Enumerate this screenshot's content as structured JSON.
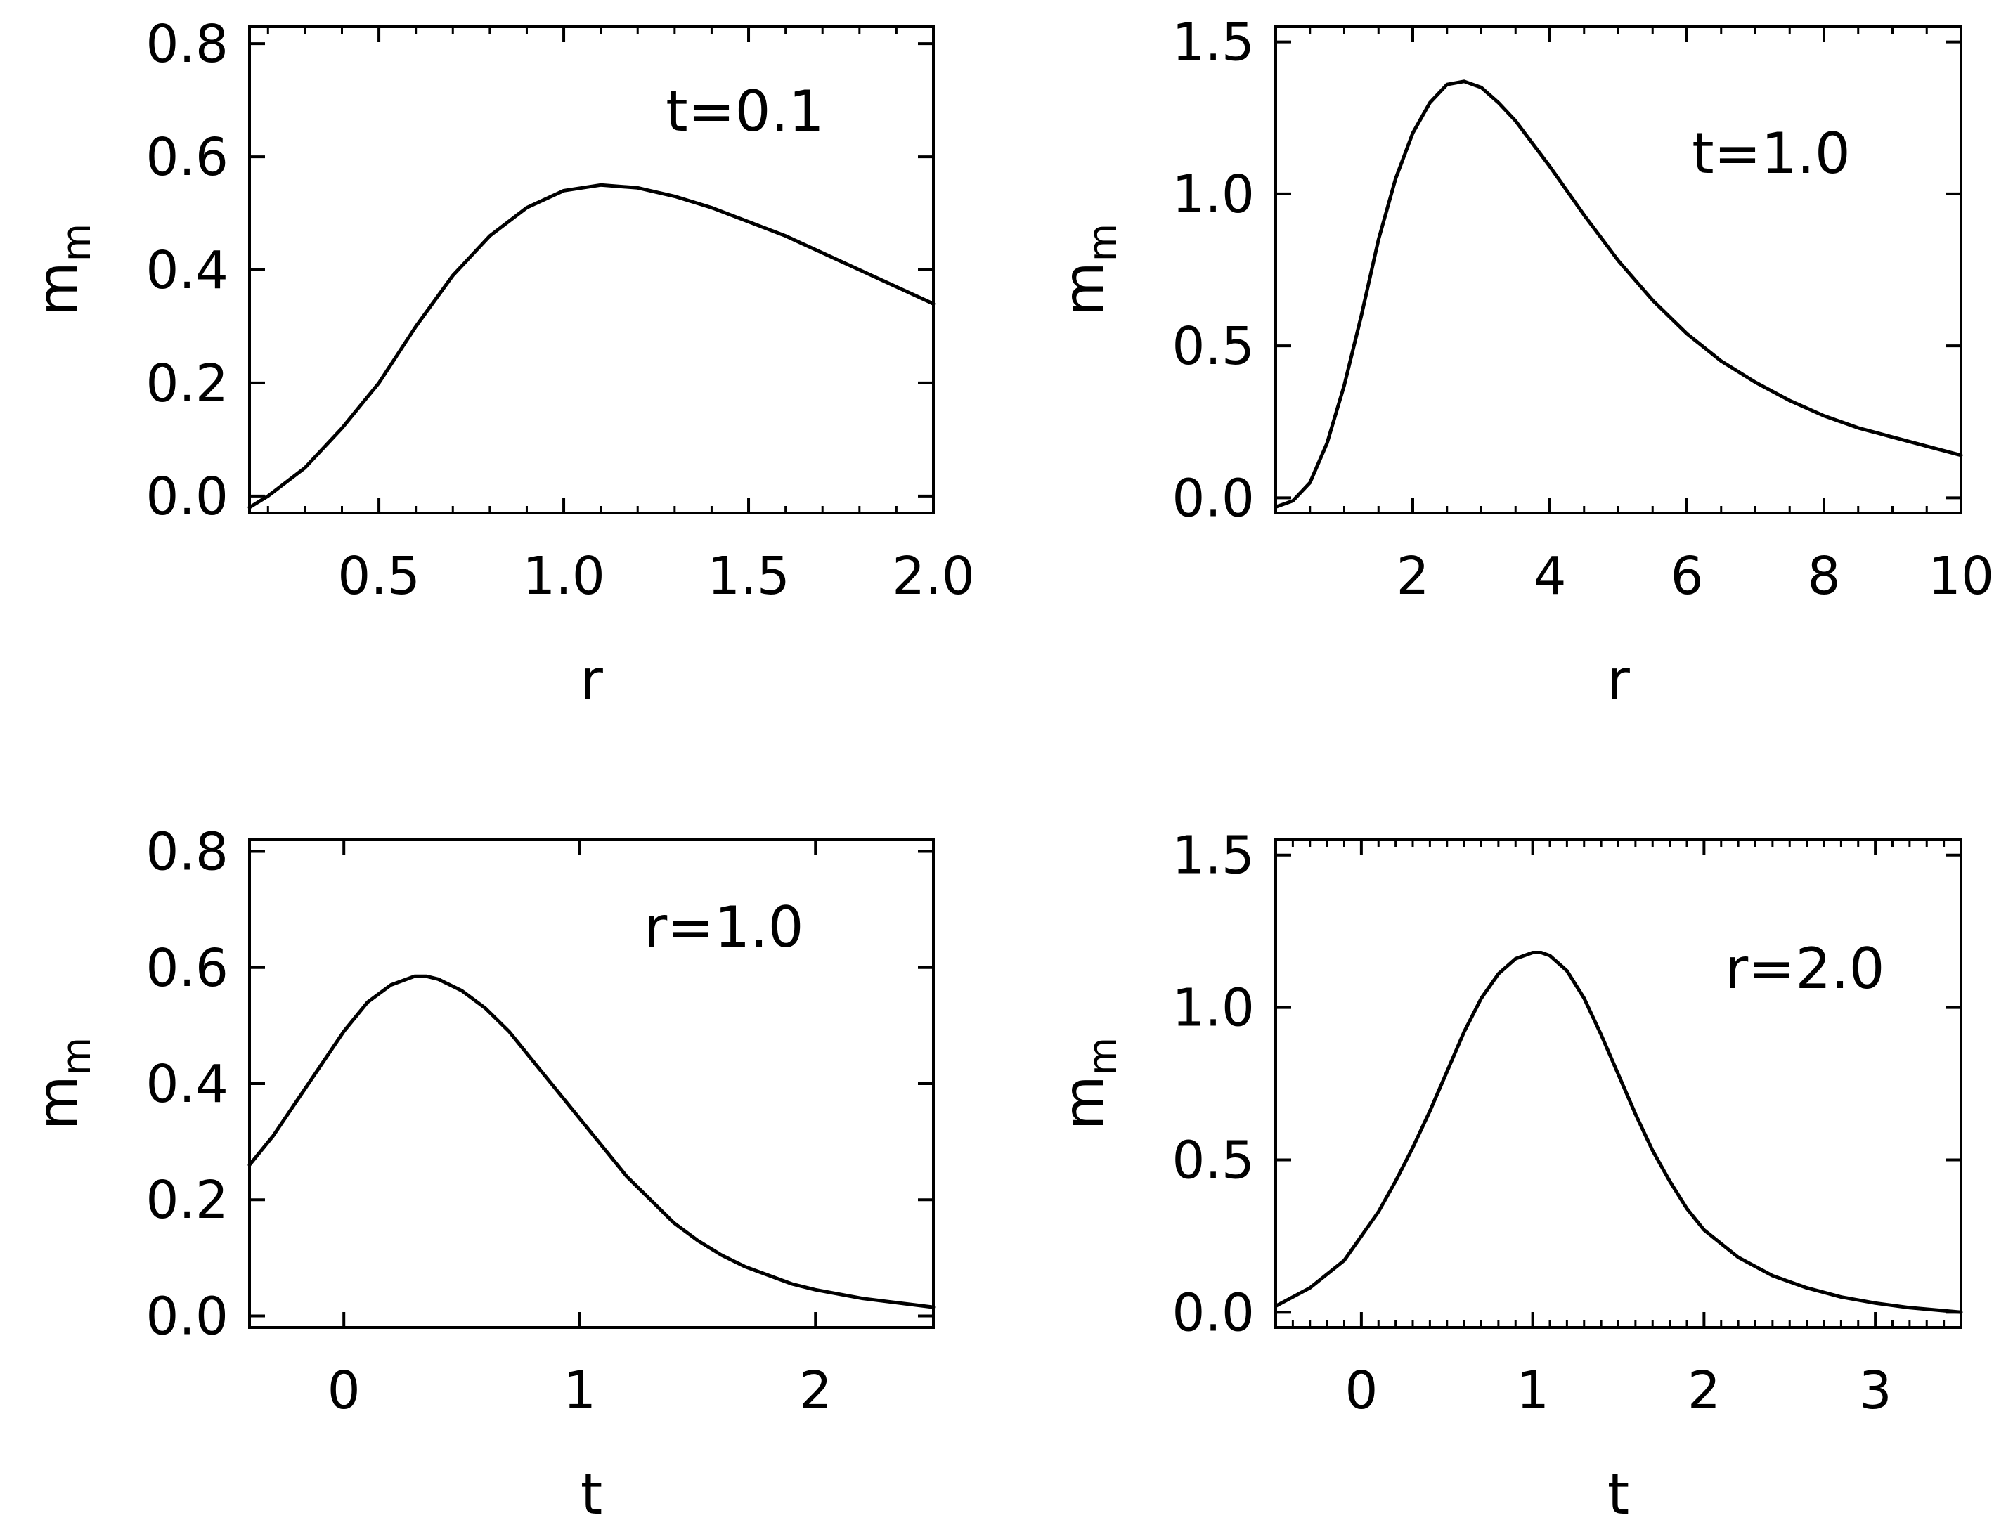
{
  "chart_data": [
    {
      "type": "line",
      "annotation": "t=0.1",
      "xlabel": "r",
      "ylabel": "m_m",
      "xlim": [
        0.15,
        2.0
      ],
      "ylim": [
        -0.03,
        0.83
      ],
      "xticks": [
        0.5,
        1.0,
        1.5,
        2.0
      ],
      "xtick_labels": [
        "0.5",
        "1.0",
        "1.5",
        "2.0"
      ],
      "yticks": [
        0.0,
        0.2,
        0.4,
        0.6,
        0.8
      ],
      "ytick_labels": [
        "0.0",
        "0.2",
        "0.4",
        "0.6",
        "0.8"
      ],
      "x_minor_step": 0.1,
      "series": [
        {
          "x": [
            0.15,
            0.2,
            0.3,
            0.4,
            0.5,
            0.6,
            0.7,
            0.8,
            0.9,
            1.0,
            1.1,
            1.2,
            1.3,
            1.4,
            1.5,
            1.6,
            1.7,
            1.8,
            1.9,
            2.0
          ],
          "y": [
            -0.02,
            0.0,
            0.05,
            0.12,
            0.2,
            0.3,
            0.39,
            0.46,
            0.51,
            0.54,
            0.55,
            0.545,
            0.53,
            0.51,
            0.485,
            0.46,
            0.43,
            0.4,
            0.37,
            0.34
          ]
        }
      ]
    },
    {
      "type": "line",
      "annotation": "t=1.0",
      "xlabel": "r",
      "ylabel": "m_m",
      "xlim": [
        0.0,
        10.0
      ],
      "ylim": [
        -0.05,
        1.55
      ],
      "xticks": [
        2,
        4,
        6,
        8,
        10
      ],
      "xtick_labels": [
        "2",
        "4",
        "6",
        "8",
        "10"
      ],
      "yticks": [
        0.0,
        0.5,
        1.0,
        1.5
      ],
      "ytick_labels": [
        "0.0",
        "0.5",
        "1.0",
        "1.5"
      ],
      "x_minor_step": 0.5,
      "series": [
        {
          "x": [
            0.0,
            0.25,
            0.5,
            0.75,
            1.0,
            1.25,
            1.5,
            1.75,
            2.0,
            2.25,
            2.5,
            2.75,
            3.0,
            3.25,
            3.5,
            4.0,
            4.5,
            5.0,
            5.5,
            6.0,
            6.5,
            7.0,
            7.5,
            8.0,
            8.5,
            9.0,
            9.5,
            10.0
          ],
          "y": [
            -0.03,
            -0.01,
            0.05,
            0.18,
            0.37,
            0.6,
            0.85,
            1.05,
            1.2,
            1.3,
            1.36,
            1.37,
            1.35,
            1.3,
            1.24,
            1.09,
            0.93,
            0.78,
            0.65,
            0.54,
            0.45,
            0.38,
            0.32,
            0.27,
            0.23,
            0.2,
            0.17,
            0.14
          ]
        }
      ]
    },
    {
      "type": "line",
      "annotation": "r=1.0",
      "xlabel": "t",
      "ylabel": "m_m",
      "xlim": [
        -0.4,
        2.5
      ],
      "ylim": [
        -0.02,
        0.82
      ],
      "xticks": [
        0,
        1,
        2
      ],
      "xtick_labels": [
        "0",
        "1",
        "2"
      ],
      "yticks": [
        0.0,
        0.2,
        0.4,
        0.6,
        0.8
      ],
      "ytick_labels": [
        "0.0",
        "0.2",
        "0.4",
        "0.6",
        "0.8"
      ],
      "series": [
        {
          "x": [
            -0.4,
            -0.3,
            -0.2,
            -0.1,
            0.0,
            0.1,
            0.2,
            0.3,
            0.35,
            0.4,
            0.5,
            0.6,
            0.7,
            0.8,
            0.9,
            1.0,
            1.1,
            1.2,
            1.3,
            1.4,
            1.5,
            1.6,
            1.7,
            1.8,
            1.9,
            2.0,
            2.2,
            2.4,
            2.5
          ],
          "y": [
            0.26,
            0.31,
            0.37,
            0.43,
            0.49,
            0.54,
            0.57,
            0.585,
            0.585,
            0.58,
            0.56,
            0.53,
            0.49,
            0.44,
            0.39,
            0.34,
            0.29,
            0.24,
            0.2,
            0.16,
            0.13,
            0.105,
            0.085,
            0.07,
            0.055,
            0.045,
            0.03,
            0.02,
            0.015
          ]
        }
      ]
    },
    {
      "type": "line",
      "annotation": "r=2.0",
      "xlabel": "t",
      "ylabel": "m_m",
      "xlim": [
        -0.5,
        3.5
      ],
      "ylim": [
        -0.05,
        1.55
      ],
      "xticks": [
        0,
        1,
        2,
        3
      ],
      "xtick_labels": [
        "0",
        "1",
        "2",
        "3"
      ],
      "yticks": [
        0.0,
        0.5,
        1.0,
        1.5
      ],
      "ytick_labels": [
        "0.0",
        "0.5",
        "1.0",
        "1.5"
      ],
      "x_minor_step": 0.1,
      "series": [
        {
          "x": [
            -0.5,
            -0.3,
            -0.1,
            0.0,
            0.1,
            0.2,
            0.3,
            0.4,
            0.5,
            0.6,
            0.7,
            0.8,
            0.9,
            1.0,
            1.05,
            1.1,
            1.2,
            1.3,
            1.4,
            1.5,
            1.6,
            1.7,
            1.8,
            1.9,
            2.0,
            2.2,
            2.4,
            2.6,
            2.8,
            3.0,
            3.2,
            3.5
          ],
          "y": [
            0.02,
            0.08,
            0.17,
            0.25,
            0.33,
            0.43,
            0.54,
            0.66,
            0.79,
            0.92,
            1.03,
            1.11,
            1.16,
            1.18,
            1.18,
            1.17,
            1.12,
            1.03,
            0.91,
            0.78,
            0.65,
            0.53,
            0.43,
            0.34,
            0.27,
            0.18,
            0.12,
            0.08,
            0.05,
            0.03,
            0.015,
            0.0
          ]
        }
      ]
    }
  ]
}
